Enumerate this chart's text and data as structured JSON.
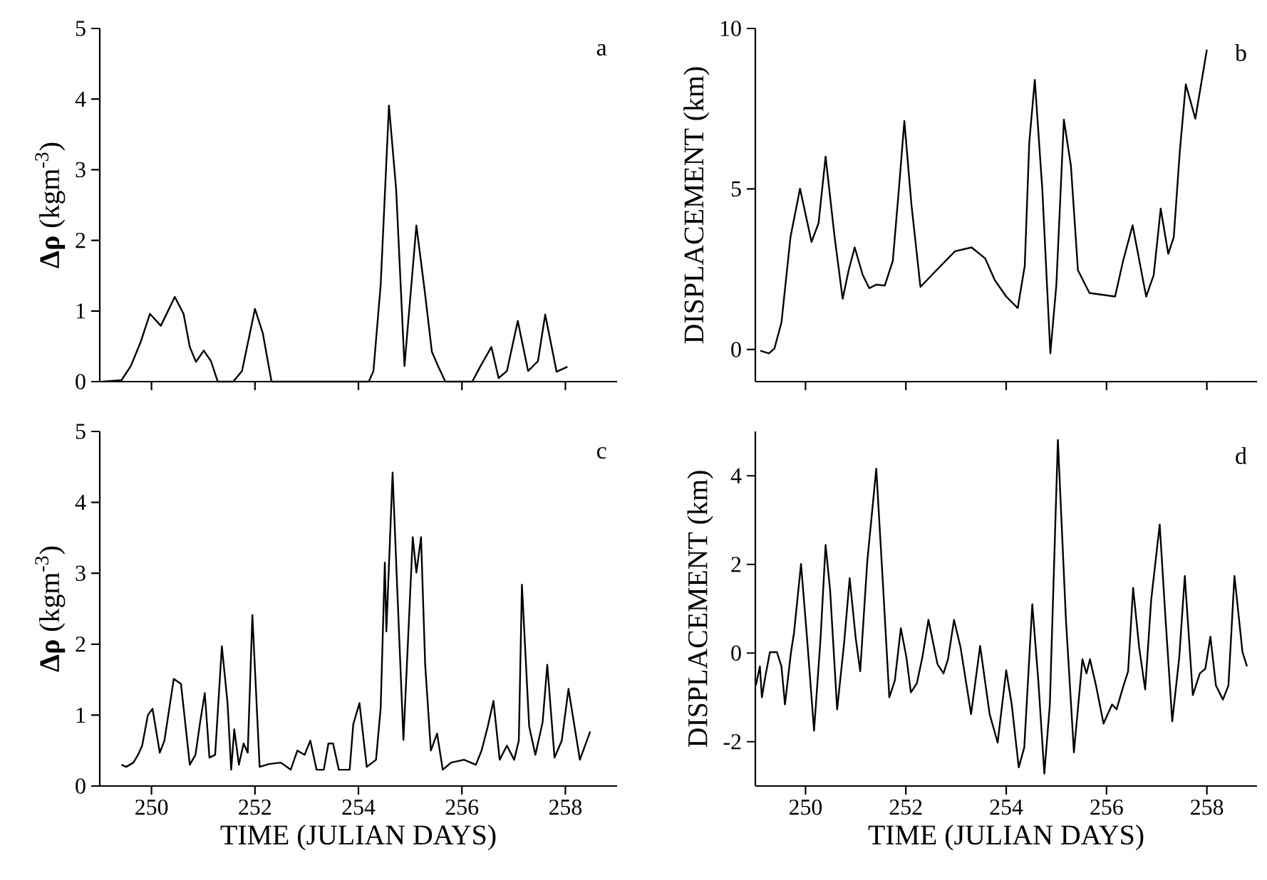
{
  "chart_data": [
    {
      "type": "line",
      "ylabel": "**Δρ** (kgm$^{-3}$)",
      "annotations": [
        "a"
      ],
      "color": "#000000",
      "xlim": [
        249,
        259
      ],
      "ylim": [
        0,
        5
      ],
      "xticks": [
        250,
        252,
        254,
        256,
        258
      ],
      "yticks": [
        0,
        1,
        2,
        3,
        4,
        5
      ],
      "tick_labels": "y",
      "x": [
        249.05,
        249.42,
        249.6,
        249.79,
        249.97,
        250.18,
        250.45,
        250.62,
        250.74,
        250.86,
        251.01,
        251.15,
        251.28,
        251.58,
        251.75,
        252.0,
        252.15,
        252.32,
        254.2,
        254.29,
        254.43,
        254.59,
        254.73,
        254.89,
        255.12,
        255.29,
        255.42,
        255.54,
        255.68,
        256.2,
        256.36,
        256.57,
        256.71,
        256.87,
        257.08,
        257.28,
        257.47,
        257.61,
        257.83,
        258.04
      ],
      "values": [
        0,
        0.02,
        0.22,
        0.56,
        0.96,
        0.79,
        1.2,
        0.96,
        0.49,
        0.28,
        0.44,
        0.29,
        0,
        0,
        0.15,
        1.03,
        0.69,
        0,
        0,
        0.15,
        1.37,
        3.91,
        2.71,
        0.22,
        2.21,
        1.23,
        0.42,
        0.22,
        0,
        0,
        0.22,
        0.49,
        0.05,
        0.15,
        0.86,
        0.15,
        0.29,
        0.95,
        0.14,
        0.21
      ]
    },
    {
      "type": "line",
      "ylabel": "DISPLACEMENT (km)",
      "annotations": [
        "b"
      ],
      "color": "#000000",
      "xlim": [
        249,
        259
      ],
      "ylim": [
        -1,
        10
      ],
      "xticks": [
        250,
        252,
        254,
        256,
        258
      ],
      "yticks": [
        0,
        5,
        10
      ],
      "tick_labels": "y",
      "x": [
        249.1,
        249.27,
        249.38,
        249.52,
        249.7,
        249.89,
        250.12,
        250.26,
        250.4,
        250.58,
        250.74,
        250.86,
        250.98,
        251.14,
        251.27,
        251.41,
        251.58,
        251.74,
        251.86,
        251.97,
        252.11,
        252.29,
        252.61,
        252.98,
        253.31,
        253.58,
        253.77,
        254.0,
        254.23,
        254.37,
        254.46,
        254.57,
        254.72,
        254.88,
        255.0,
        255.15,
        255.29,
        255.43,
        255.66,
        256.17,
        256.33,
        256.52,
        256.79,
        256.94,
        257.08,
        257.23,
        257.34,
        257.46,
        257.58,
        257.77,
        258.0
      ],
      "values": [
        -0.04,
        -0.12,
        0.03,
        0.84,
        3.5,
        5.01,
        3.35,
        3.94,
        6.01,
        3.5,
        1.58,
        2.47,
        3.18,
        2.32,
        1.91,
        2.02,
        1.99,
        2.76,
        4.98,
        7.12,
        4.53,
        1.95,
        2.47,
        3.06,
        3.18,
        2.84,
        2.17,
        1.65,
        1.29,
        2.61,
        6.45,
        8.4,
        4.98,
        -0.12,
        2.02,
        7.16,
        5.72,
        2.47,
        1.76,
        1.65,
        2.76,
        3.87,
        1.65,
        2.32,
        4.39,
        2.98,
        3.5,
        6.16,
        8.26,
        7.19,
        9.34
      ]
    },
    {
      "type": "line",
      "xlabel": "TIME (JULIAN DAYS)",
      "ylabel": "**Δρ** (kgm$^{-3}$)",
      "annotations": [
        "c"
      ],
      "color": "#000000",
      "xlim": [
        249,
        259
      ],
      "ylim": [
        0,
        5
      ],
      "xticks": [
        250,
        252,
        254,
        256,
        258
      ],
      "yticks": [
        0,
        1,
        2,
        3,
        4,
        5
      ],
      "x": [
        249.42,
        249.51,
        249.65,
        249.74,
        249.82,
        249.93,
        250.02,
        250.16,
        250.25,
        250.43,
        250.57,
        250.74,
        250.85,
        250.94,
        251.03,
        251.12,
        251.23,
        251.36,
        251.47,
        251.54,
        251.6,
        251.69,
        251.78,
        251.86,
        251.95,
        252.09,
        252.27,
        252.5,
        252.69,
        252.82,
        252.96,
        253.07,
        253.19,
        253.33,
        253.42,
        253.51,
        253.62,
        253.83,
        253.9,
        254.02,
        254.16,
        254.34,
        254.43,
        254.51,
        254.54,
        254.66,
        254.75,
        254.87,
        255.05,
        255.12,
        255.21,
        255.29,
        255.4,
        255.52,
        255.63,
        255.79,
        256.04,
        256.27,
        256.38,
        256.5,
        256.61,
        256.73,
        256.87,
        257.01,
        257.1,
        257.16,
        257.3,
        257.42,
        257.56,
        257.65,
        257.79,
        257.93,
        258.06,
        258.28,
        258.48
      ],
      "values": [
        0.3,
        0.27,
        0.33,
        0.44,
        0.57,
        1.0,
        1.09,
        0.47,
        0.64,
        1.51,
        1.44,
        0.3,
        0.44,
        0.9,
        1.31,
        0.4,
        0.44,
        1.97,
        1.17,
        0.23,
        0.8,
        0.3,
        0.6,
        0.47,
        2.41,
        0.27,
        0.31,
        0.33,
        0.23,
        0.5,
        0.44,
        0.64,
        0.23,
        0.23,
        0.6,
        0.6,
        0.23,
        0.23,
        0.87,
        1.17,
        0.27,
        0.37,
        1.1,
        3.15,
        2.18,
        4.42,
        2.78,
        0.65,
        3.51,
        3.01,
        3.51,
        1.71,
        0.5,
        0.74,
        0.23,
        0.33,
        0.37,
        0.3,
        0.5,
        0.84,
        1.2,
        0.37,
        0.57,
        0.37,
        0.64,
        2.84,
        0.84,
        0.44,
        0.9,
        1.71,
        0.4,
        0.64,
        1.37,
        0.37,
        0.77
      ]
    },
    {
      "type": "line",
      "xlabel": "TIME (JULIAN DAYS)",
      "ylabel": "DISPLACEMENT (km)",
      "annotations": [
        "d"
      ],
      "color": "#000000",
      "xlim": [
        249,
        259
      ],
      "ylim": [
        -3,
        5
      ],
      "xticks": [
        250,
        252,
        254,
        256,
        258
      ],
      "yticks": [
        -2,
        0,
        2,
        4
      ],
      "x": [
        249.01,
        249.09,
        249.13,
        249.2,
        249.29,
        249.43,
        249.52,
        249.59,
        249.71,
        249.77,
        249.91,
        250.03,
        250.17,
        250.3,
        250.4,
        250.49,
        250.63,
        250.77,
        250.88,
        251.0,
        251.09,
        251.23,
        251.41,
        251.55,
        251.67,
        251.78,
        251.9,
        252.01,
        252.1,
        252.22,
        252.33,
        252.45,
        252.63,
        252.75,
        252.84,
        252.96,
        253.09,
        253.3,
        253.48,
        253.67,
        253.83,
        254.0,
        254.11,
        254.25,
        254.36,
        254.52,
        254.64,
        254.76,
        254.87,
        255.03,
        255.19,
        255.35,
        255.52,
        255.6,
        255.67,
        255.79,
        255.94,
        256.11,
        256.2,
        256.34,
        256.43,
        256.53,
        256.65,
        256.77,
        256.89,
        257.06,
        257.17,
        257.31,
        257.45,
        257.56,
        257.72,
        257.86,
        257.97,
        258.07,
        258.18,
        258.32,
        258.43,
        258.55,
        258.71,
        258.8
      ],
      "values": [
        -0.73,
        -0.3,
        -1.0,
        -0.52,
        0.02,
        0.02,
        -0.3,
        -1.16,
        0.02,
        0.45,
        2.01,
        0.34,
        -1.75,
        0.34,
        2.44,
        1.42,
        -1.27,
        0.24,
        1.69,
        0.34,
        -0.41,
        2.06,
        4.16,
        1.42,
        -1.0,
        -0.62,
        0.56,
        -0.09,
        -0.89,
        -0.68,
        -0.09,
        0.75,
        -0.25,
        -0.46,
        -0.14,
        0.75,
        0.13,
        -1.38,
        0.16,
        -1.38,
        -2.02,
        -0.39,
        -1.16,
        -2.58,
        -2.13,
        1.1,
        -0.62,
        -2.72,
        -1.16,
        4.81,
        0.77,
        -2.24,
        -0.14,
        -0.46,
        -0.14,
        -0.73,
        -1.59,
        -1.16,
        -1.27,
        -0.73,
        -0.41,
        1.47,
        0.13,
        -0.82,
        1.2,
        2.9,
        0.88,
        -1.54,
        -0.09,
        1.74,
        -0.95,
        -0.46,
        -0.35,
        0.37,
        -0.73,
        -1.05,
        -0.73,
        1.74,
        0.02,
        -0.3
      ]
    }
  ]
}
